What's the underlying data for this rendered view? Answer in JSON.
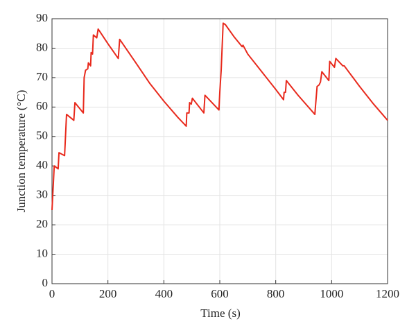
{
  "chart_data": {
    "type": "line",
    "xlabel": "Time (s)",
    "ylabel": "Junction temperature (°C)",
    "x": [
      0,
      8,
      22,
      25,
      45,
      52,
      78,
      82,
      112,
      115,
      120,
      128,
      130,
      138,
      140,
      145,
      148,
      160,
      165,
      200,
      237,
      242,
      300,
      350,
      400,
      450,
      480,
      482,
      490,
      492,
      498,
      502,
      543,
      547,
      597,
      600,
      605,
      612,
      620,
      650,
      680,
      683,
      700,
      750,
      800,
      828,
      830,
      835,
      838,
      880,
      940,
      942,
      948,
      955,
      960,
      965,
      990,
      993,
      1010,
      1015,
      1040,
      1045,
      1100,
      1150,
      1200
    ],
    "series": [
      {
        "name": "Junction temperature",
        "color": "#e8291c",
        "values": [
          25,
          40,
          39,
          44.5,
          43.5,
          57.5,
          55.5,
          61.5,
          58,
          70,
          72.5,
          73,
          75,
          74,
          78.5,
          78,
          84.5,
          83.5,
          86.5,
          81.5,
          76.5,
          83,
          75,
          68,
          62,
          56.5,
          53.5,
          58,
          58,
          61.5,
          61,
          63,
          58,
          64,
          59,
          65,
          72.5,
          88.5,
          88,
          84,
          80.5,
          81,
          78,
          72,
          66,
          62.5,
          65,
          65,
          69,
          64,
          57.5,
          60,
          67,
          67.5,
          68.5,
          72,
          69,
          75.5,
          73.5,
          76.5,
          74,
          74,
          67,
          61,
          55.5
        ]
      }
    ],
    "xlim": [
      0,
      1200
    ],
    "xticks": [
      0,
      200,
      400,
      600,
      800,
      1000,
      1200
    ],
    "ylim": [
      0,
      90
    ],
    "yticks": [
      0,
      10,
      20,
      30,
      40,
      50,
      60,
      70,
      80,
      90
    ],
    "grid": true
  }
}
